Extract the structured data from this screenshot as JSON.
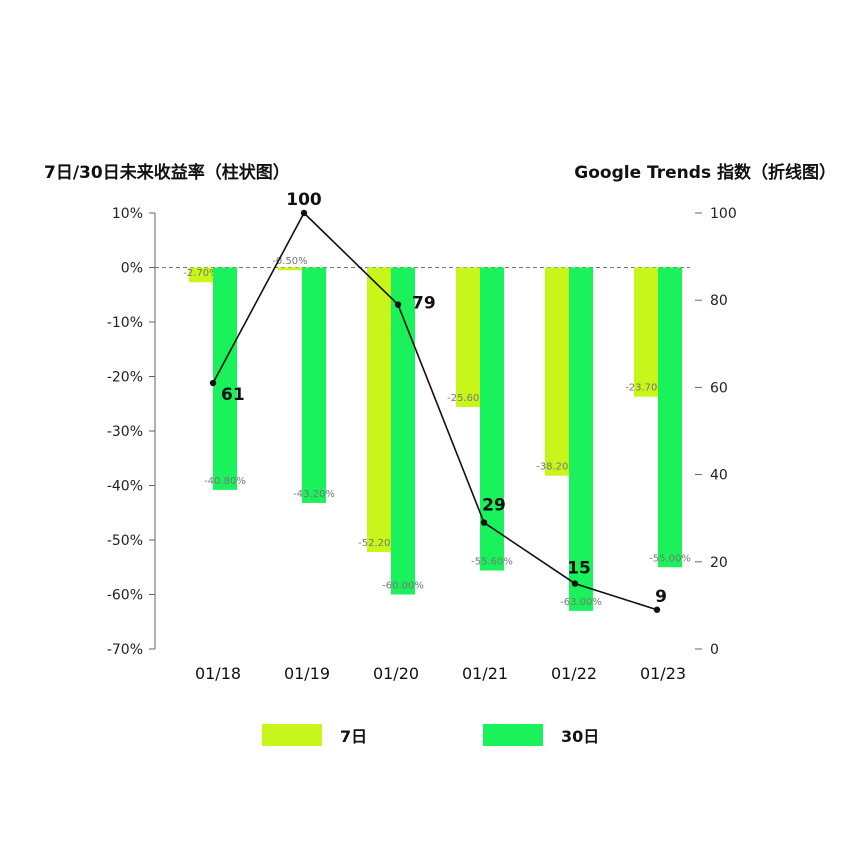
{
  "chart_data": {
    "type": "bar",
    "title_left": "7日/30日未来收益率（柱状图）",
    "title_right": "Google Trends 指数（折线图）",
    "categories": [
      "01/18",
      "01/19",
      "01/20",
      "01/21",
      "01/22",
      "01/23"
    ],
    "series": [
      {
        "name": "7日",
        "type": "bar",
        "axis": "left",
        "color": "#c8f51a",
        "values": [
          -2.7,
          -0.5,
          -52.2,
          -25.6,
          -38.2,
          -23.7
        ],
        "labels": [
          "-2.70%",
          "-0.50%",
          "-52.20%",
          "-25.60%",
          "-38.20%",
          "-23.70%"
        ]
      },
      {
        "name": "30日",
        "type": "bar",
        "axis": "left",
        "color": "#19f25a",
        "values": [
          -40.8,
          -43.2,
          -60.0,
          -55.6,
          -63.0,
          -55.0
        ],
        "labels": [
          "-40.80%",
          "-43.20%",
          "-60.00%",
          "-55.60%",
          "-63.00%",
          "-55.00%"
        ]
      },
      {
        "type": "line",
        "axis": "right",
        "color": "#111111",
        "values": [
          61,
          100,
          79,
          29,
          15,
          9
        ],
        "labels": [
          "61",
          "100",
          "79",
          "29",
          "15",
          "9"
        ]
      }
    ],
    "left_axis": {
      "ylim": [
        -70,
        10
      ],
      "ticks": [
        10,
        0,
        -10,
        -20,
        -30,
        -40,
        -50,
        -60,
        -70
      ],
      "tick_labels": [
        "10%",
        "0%",
        "-10%",
        "-20%",
        "-30%",
        "-40%",
        "-50%",
        "-60%",
        "-70%"
      ]
    },
    "right_axis": {
      "ylim": [
        0,
        100
      ],
      "ticks": [
        100,
        80,
        60,
        40,
        20,
        0
      ],
      "tick_labels": [
        "100",
        "80",
        "60",
        "40",
        "20",
        "0"
      ]
    },
    "zero_line": "dashed",
    "grid": false,
    "legend_position": "bottom"
  }
}
